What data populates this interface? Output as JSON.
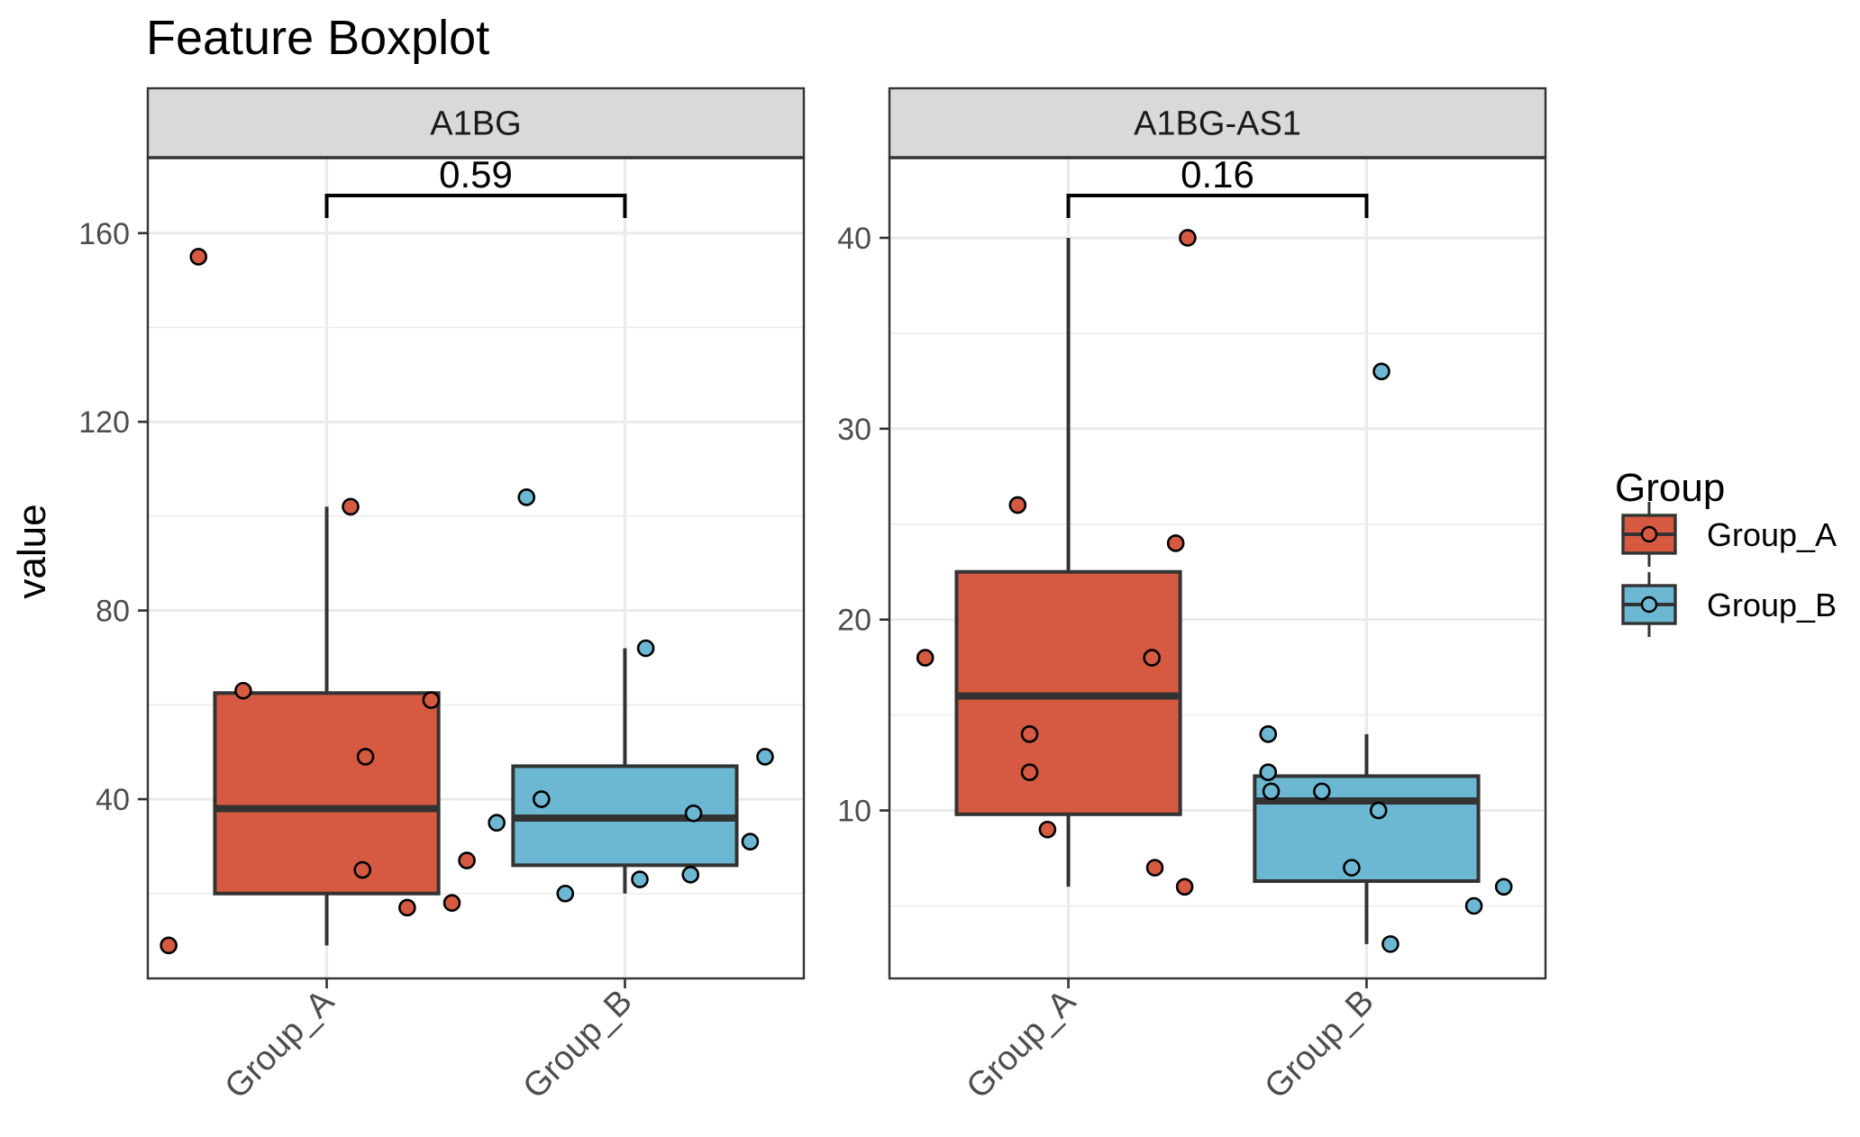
{
  "chart_data": {
    "type": "box",
    "title": "Feature Boxplot",
    "ylabel": "value",
    "legend": {
      "title": "Group",
      "position": "right",
      "entries": [
        {
          "label": "Group_A",
          "color": "#D55A41"
        },
        {
          "label": "Group_B",
          "color": "#6CB8D3"
        }
      ]
    },
    "grid": true,
    "panels": [
      {
        "strip_label": "A1BG",
        "ylim": [
          2,
          176
        ],
        "yticks": [
          40,
          80,
          120,
          160
        ],
        "categories": [
          "Group_A",
          "Group_B"
        ],
        "pvalue": "0.59",
        "boxes": [
          {
            "group": "Group_A",
            "whisker_low": 9,
            "q1": 20,
            "median": 38,
            "q3": 62.5,
            "whisker_high": 102,
            "points": [
              [
                -0.53,
                9
              ],
              [
                -0.43,
                155
              ],
              [
                -0.28,
                63
              ],
              [
                0.08,
                102
              ],
              [
                0.13,
                49
              ],
              [
                0.12,
                25
              ],
              [
                0.27,
                17
              ],
              [
                0.35,
                61
              ],
              [
                0.42,
                18
              ],
              [
                0.47,
                27
              ]
            ]
          },
          {
            "group": "Group_B",
            "whisker_low": 20,
            "q1": 26,
            "median": 36,
            "q3": 47,
            "whisker_high": 72,
            "points": [
              [
                -0.43,
                35
              ],
              [
                -0.33,
                104
              ],
              [
                -0.28,
                40
              ],
              [
                -0.2,
                20
              ],
              [
                0.05,
                23
              ],
              [
                0.07,
                72
              ],
              [
                0.22,
                24
              ],
              [
                0.23,
                37
              ],
              [
                0.42,
                31
              ],
              [
                0.47,
                49
              ]
            ]
          }
        ]
      },
      {
        "strip_label": "A1BG-AS1",
        "ylim": [
          1.2,
          44.2
        ],
        "yticks": [
          10,
          20,
          30,
          40
        ],
        "categories": [
          "Group_A",
          "Group_B"
        ],
        "pvalue": "0.16",
        "boxes": [
          {
            "group": "Group_A",
            "whisker_low": 6,
            "q1": 9.8,
            "median": 16,
            "q3": 22.5,
            "whisker_high": 40,
            "points": [
              [
                -0.48,
                18
              ],
              [
                -0.17,
                26
              ],
              [
                -0.13,
                14
              ],
              [
                -0.13,
                12
              ],
              [
                -0.07,
                9
              ],
              [
                0.28,
                18
              ],
              [
                0.29,
                7
              ],
              [
                0.36,
                24
              ],
              [
                0.39,
                6
              ],
              [
                0.4,
                40
              ]
            ]
          },
          {
            "group": "Group_B",
            "whisker_low": 3,
            "q1": 6.3,
            "median": 10.5,
            "q3": 11.8,
            "whisker_high": 14,
            "points": [
              [
                -0.33,
                14
              ],
              [
                -0.33,
                12
              ],
              [
                -0.32,
                11
              ],
              [
                -0.15,
                11
              ],
              [
                -0.05,
                7
              ],
              [
                0.04,
                10
              ],
              [
                0.05,
                33
              ],
              [
                0.08,
                3
              ],
              [
                0.36,
                5
              ],
              [
                0.46,
                6
              ]
            ]
          }
        ]
      }
    ]
  }
}
